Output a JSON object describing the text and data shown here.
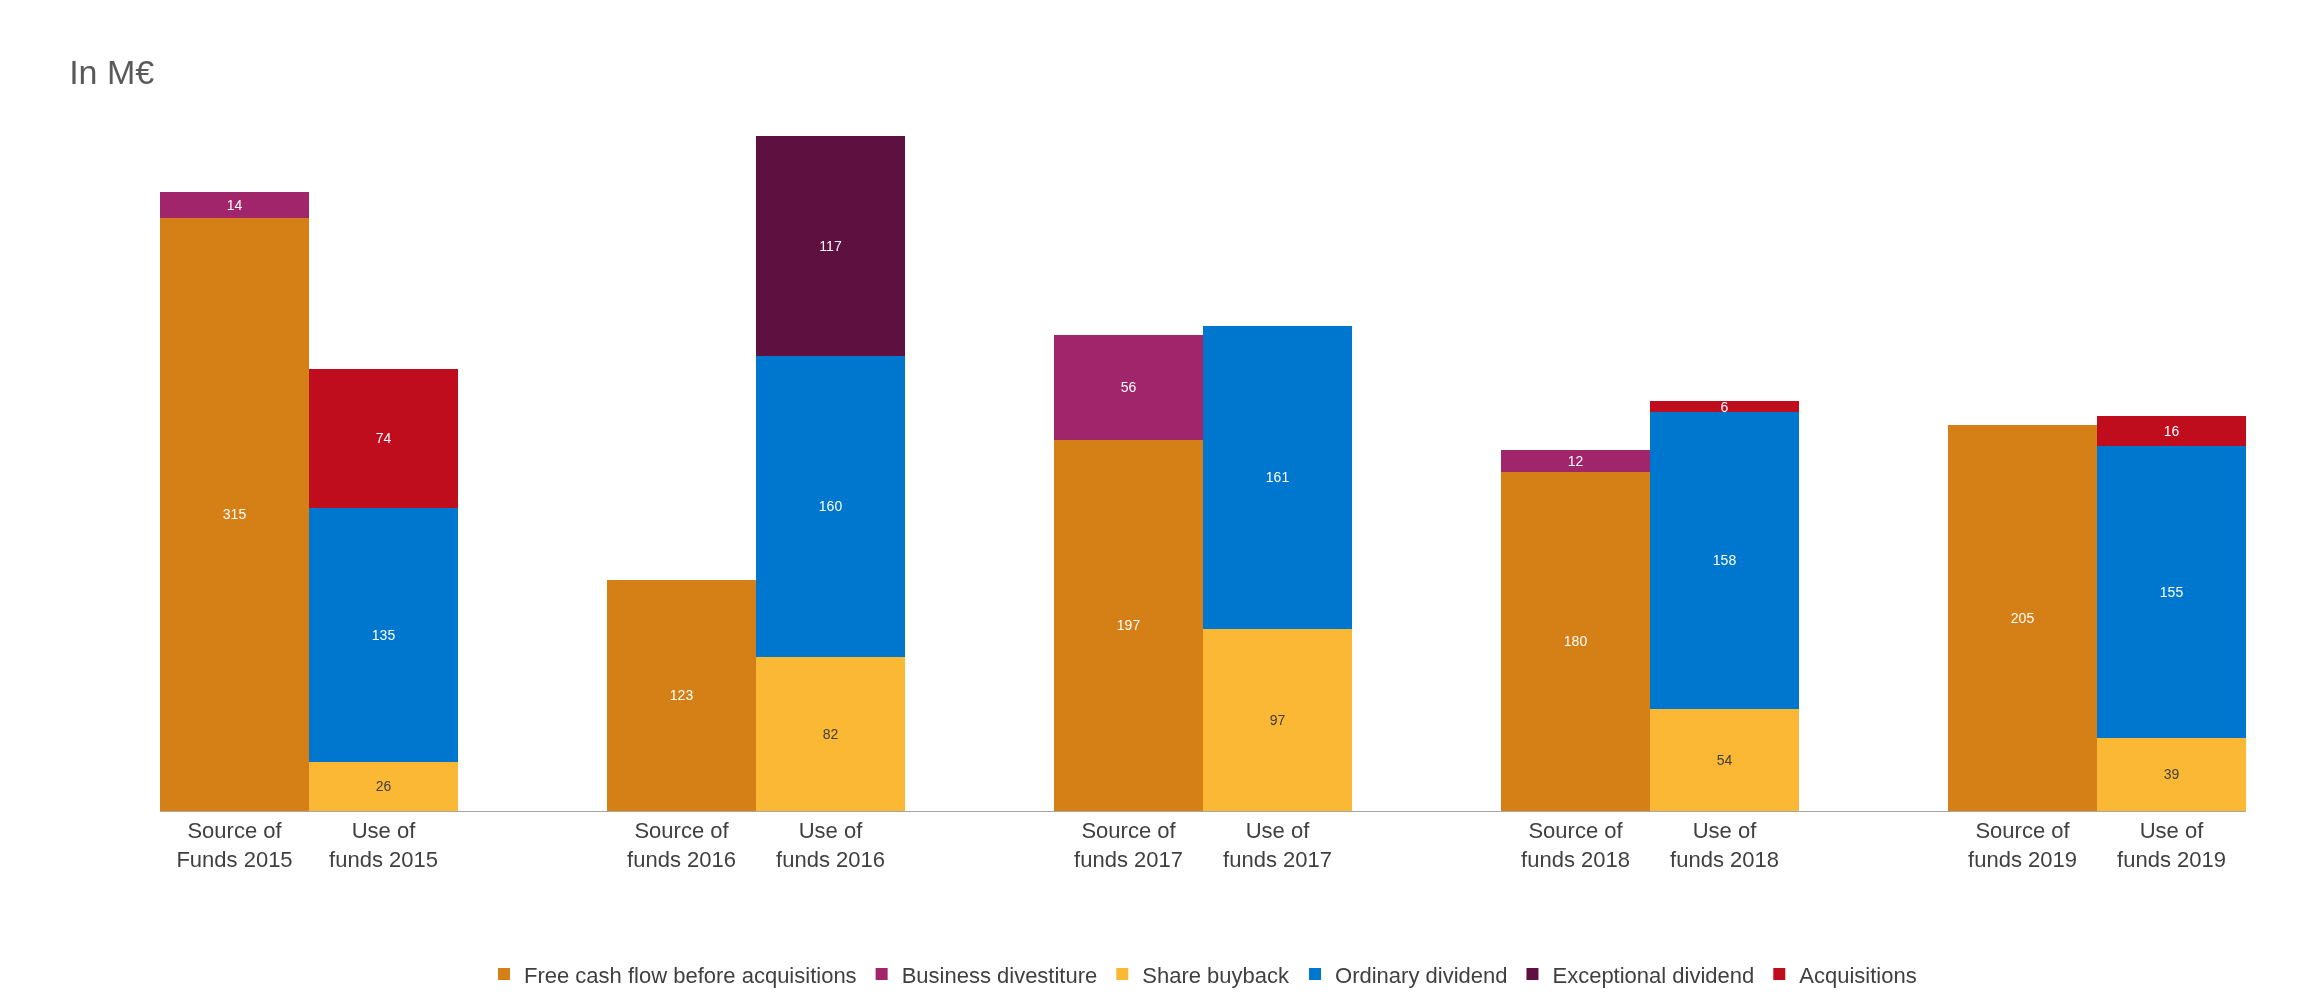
{
  "chart_data": {
    "type": "bar",
    "stacked": true,
    "title": "In M€",
    "data_labels": true,
    "legend": "bottom",
    "categories": [
      "Source of\nFunds 2015",
      "Use of\nfunds 2015",
      null,
      "Source of\nfunds 2016",
      "Use of\nfunds 2016",
      null,
      "Source of\nfunds 2017",
      "Use of\nfunds 2017",
      null,
      "Source of\nfunds 2018",
      "Use of\nfunds 2018",
      null,
      "Source of\nfunds 2019",
      "Use of\nfunds 2019"
    ],
    "series": [
      {
        "name": "Free cash flow before acquisitions",
        "color": "#d57f17",
        "values": [
          315,
          null,
          null,
          123,
          null,
          null,
          197,
          null,
          null,
          180,
          null,
          null,
          205,
          null
        ]
      },
      {
        "name": "Business divestiture",
        "color": "#a0256a",
        "values": [
          14,
          null,
          null,
          null,
          null,
          null,
          56,
          null,
          null,
          12,
          null,
          null,
          null,
          null
        ]
      },
      {
        "name": "Share buyback",
        "color": "#fbb834",
        "values": [
          null,
          26,
          null,
          null,
          82,
          null,
          null,
          97,
          null,
          null,
          54,
          null,
          null,
          39
        ]
      },
      {
        "name": "Ordinary dividend",
        "color": "#0077cf",
        "values": [
          null,
          135,
          null,
          null,
          160,
          null,
          null,
          161,
          null,
          null,
          158,
          null,
          null,
          155
        ]
      },
      {
        "name": "Exceptional dividend",
        "color": "#5e1040",
        "values": [
          null,
          null,
          null,
          null,
          117,
          null,
          null,
          null,
          null,
          null,
          null,
          null,
          null,
          null
        ]
      },
      {
        "name": "Acquisitions",
        "color": "#c00d1e",
        "values": [
          null,
          74,
          null,
          null,
          null,
          null,
          null,
          null,
          null,
          null,
          6,
          null,
          null,
          16
        ]
      }
    ]
  }
}
